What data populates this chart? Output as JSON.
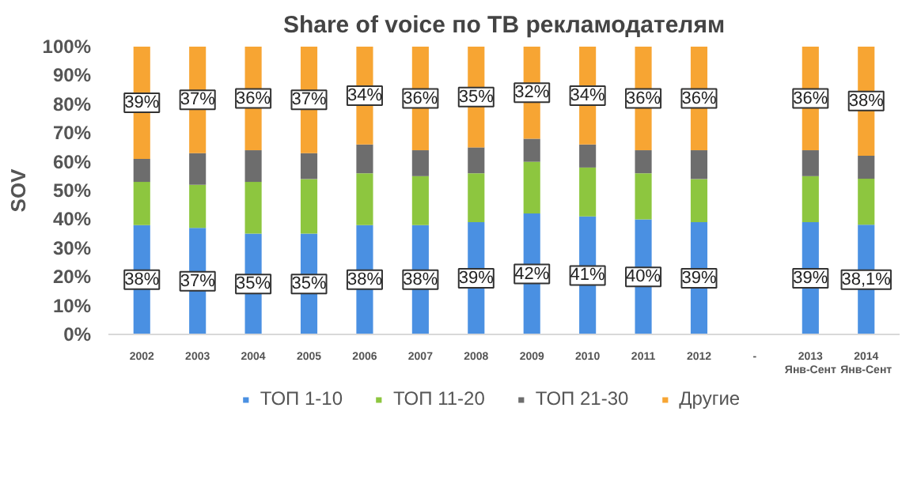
{
  "chart_data": {
    "type": "bar",
    "stacked": true,
    "title": "Share of voice по ТВ рекламодателям",
    "ylabel": "SOV",
    "categories": [
      "2002",
      "2003",
      "2004",
      "2005",
      "2006",
      "2007",
      "2008",
      "2009",
      "2010",
      "2011",
      "2012",
      "-",
      "2013\nЯнв-Сент",
      "2014\nЯнв-Сент"
    ],
    "ylim": [
      0,
      100
    ],
    "yticks": [
      {
        "value": 0,
        "label": "0%"
      },
      {
        "value": 10,
        "label": "10%"
      },
      {
        "value": 20,
        "label": "20%"
      },
      {
        "value": 30,
        "label": "30%"
      },
      {
        "value": 40,
        "label": "40%"
      },
      {
        "value": 50,
        "label": "50%"
      },
      {
        "value": 60,
        "label": "60%"
      },
      {
        "value": 70,
        "label": "70%"
      },
      {
        "value": 80,
        "label": "80%"
      },
      {
        "value": 90,
        "label": "90%"
      },
      {
        "value": 100,
        "label": "100%"
      }
    ],
    "series": [
      {
        "name": "ТОП 1-10",
        "color": "#4a90e2",
        "values": [
          38,
          37,
          35,
          35,
          38,
          38,
          39,
          42,
          41,
          40,
          39,
          null,
          39,
          38.1
        ],
        "value_labels": [
          "38%",
          "37%",
          "35%",
          "35%",
          "38%",
          "38%",
          "39%",
          "42%",
          "41%",
          "40%",
          "39%",
          null,
          "39%",
          "38,1%"
        ]
      },
      {
        "name": "ТОП 11-20",
        "color": "#8dc63f",
        "values": [
          15,
          15,
          18,
          19,
          18,
          17,
          17,
          18,
          17,
          16,
          15,
          null,
          16,
          16
        ]
      },
      {
        "name": "ТОП 21-30",
        "color": "#6d6d6d",
        "values": [
          8,
          11,
          11,
          9,
          10,
          9,
          9,
          8,
          8,
          8,
          10,
          null,
          9,
          8
        ]
      },
      {
        "name": "Другие",
        "color": "#f7a533",
        "values": [
          39,
          37,
          36,
          37,
          34,
          36,
          35,
          32,
          34,
          36,
          36,
          null,
          36,
          38
        ],
        "value_labels": [
          "39%",
          "37%",
          "36%",
          "37%",
          "34%",
          "36%",
          "35%",
          "32%",
          "34%",
          "36%",
          "36%",
          null,
          "36%",
          "38%"
        ]
      }
    ],
    "legend": "bottom",
    "grid": false
  }
}
